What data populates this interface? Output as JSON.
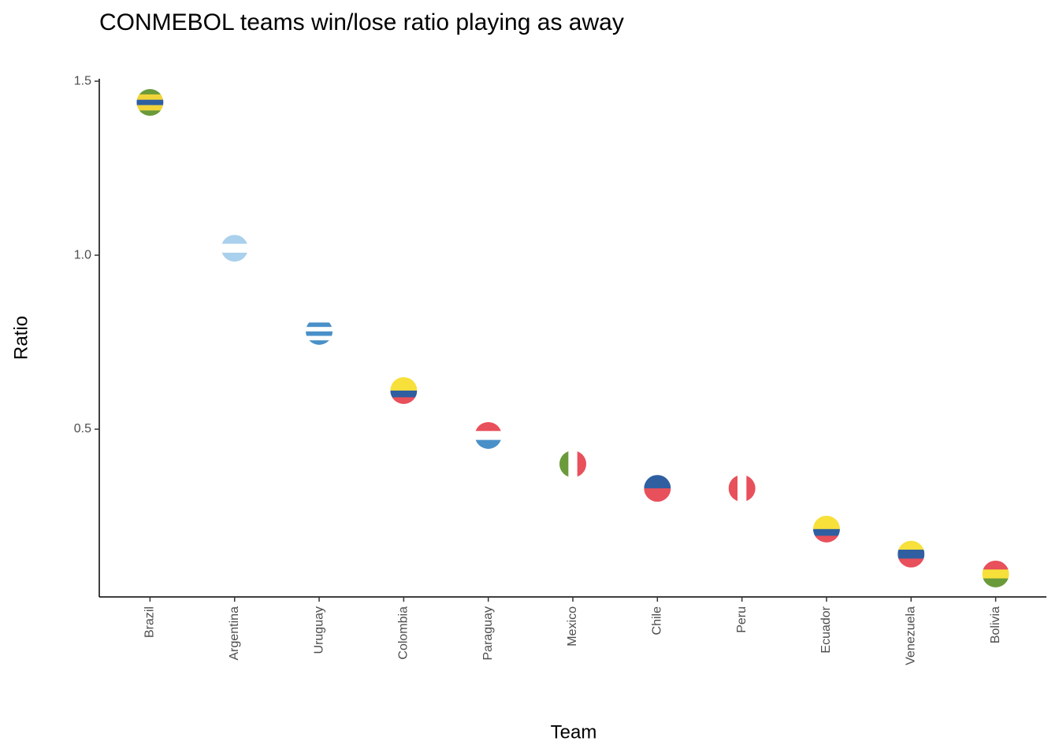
{
  "chart_data": {
    "type": "scatter",
    "title": "CONMEBOL teams win/lose ratio playing as away",
    "x_label": "Team",
    "y_label": "Ratio",
    "categories": [
      "Brazil",
      "Argentina",
      "Uruguay",
      "Colombia",
      "Paraguay",
      "Mexico",
      "Chile",
      "Peru",
      "Ecuador",
      "Venezuela",
      "Bolivia"
    ],
    "values": [
      1.439,
      1.02,
      0.781,
      0.611,
      0.482,
      0.4,
      0.33,
      0.33,
      0.213,
      0.141,
      0.084
    ],
    "flags": [
      {
        "dir": "h",
        "stripes": [
          "#6a9a3a",
          "#f2d43a",
          "#2f5fa0",
          "#f2d43a",
          "#6a9a3a"
        ]
      },
      {
        "dir": "h",
        "stripes": [
          "#a9d0ec",
          "#ffffff",
          "#a9d0ec"
        ]
      },
      {
        "dir": "h",
        "stripes": [
          "#ffffff",
          "#4a90c8",
          "#ffffff",
          "#4a90c8",
          "#ffffff",
          "#4a90c8"
        ]
      },
      {
        "dir": "h",
        "stripes": [
          "#f7e03a",
          "#f7e03a",
          "#2f5fa0",
          "#e8505b"
        ]
      },
      {
        "dir": "h",
        "stripes": [
          "#e8505b",
          "#ffffff",
          "#4a90c8"
        ]
      },
      {
        "dir": "v",
        "stripes": [
          "#6a9a3a",
          "#ffffff",
          "#e8505b"
        ]
      },
      {
        "dir": "h",
        "stripes": [
          "#2f5fa0",
          "#e8505b"
        ]
      },
      {
        "dir": "v",
        "stripes": [
          "#e8505b",
          "#ffffff",
          "#e8505b"
        ]
      },
      {
        "dir": "h",
        "stripes": [
          "#f7e03a",
          "#f7e03a",
          "#2f5fa0",
          "#e8505b"
        ]
      },
      {
        "dir": "h",
        "stripes": [
          "#f7e03a",
          "#2f5fa0",
          "#e8505b"
        ]
      },
      {
        "dir": "h",
        "stripes": [
          "#e8505b",
          "#f7e03a",
          "#6a9a3a"
        ]
      }
    ],
    "ylim": [
      0.018,
      1.507
    ],
    "yticks": [
      {
        "value": 0.5,
        "label": "0.5"
      },
      {
        "value": 1.0,
        "label": "1.0"
      },
      1.5
    ],
    "grid": false
  }
}
